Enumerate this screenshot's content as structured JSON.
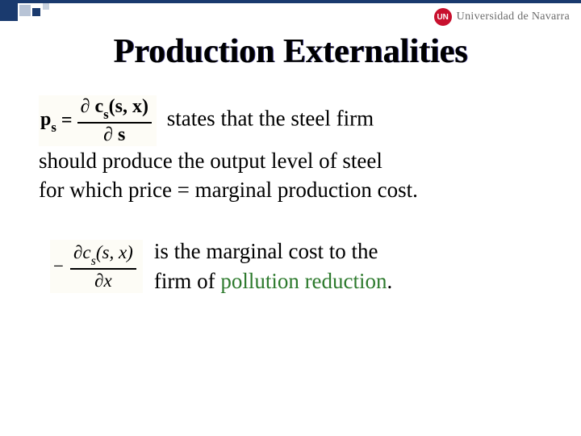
{
  "header": {
    "logo_badge": "UN",
    "university": "Universidad de Navarra"
  },
  "title": "Production Externalities",
  "equation1": {
    "lhs_var": "p",
    "lhs_sub": "s",
    "equals": "=",
    "num_partial": "∂",
    "num_func": "c",
    "num_func_sub": "s",
    "num_args": "(s, x)",
    "den_partial": "∂",
    "den_var": "s"
  },
  "para1": {
    "line_a": "states that the steel firm",
    "line_b": "should produce the output level of steel",
    "line_c": "for which price = marginal production cost."
  },
  "equation2": {
    "minus": "−",
    "num_partial": "∂",
    "num_func": "c",
    "num_func_sub": "s",
    "num_args": "(s, x)",
    "den_partial": "∂",
    "den_var": "x"
  },
  "para2": {
    "line_a": "is the marginal cost to the",
    "line_b_pre": "firm of ",
    "line_b_hl": "pollution reduction",
    "line_b_post": "."
  },
  "colors": {
    "header_bar": "#1a3a6e",
    "highlight": "#2d7a2d",
    "badge": "#c8102e",
    "eq_bg": "#fdfcf6"
  }
}
